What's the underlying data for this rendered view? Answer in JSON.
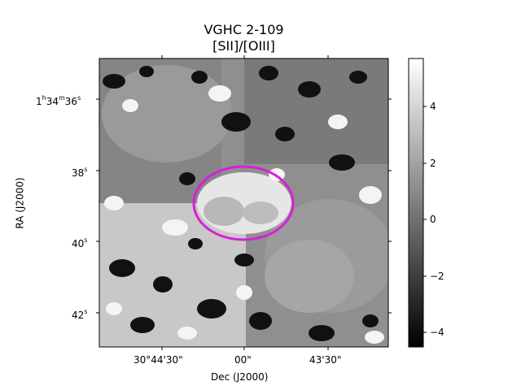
{
  "figure": {
    "title_line1": "VGHC 2-109",
    "title_line2": "[SII]/[OIII]",
    "xlabel": "Dec (J2000)",
    "ylabel": "RA (J2000)"
  },
  "x_ticks": [
    "30°44'30\"",
    "00\"",
    "43'30\""
  ],
  "y_ticks": [
    {
      "base": "1",
      "u1": "h",
      "mid": "34",
      "u2": "m",
      "sec": "36",
      "u3": "s"
    },
    {
      "sec": "38",
      "u3": "s"
    },
    {
      "sec": "40",
      "u3": "s"
    },
    {
      "sec": "42",
      "u3": "s"
    }
  ],
  "colorbar": {
    "ticks": [
      "4",
      "2",
      "0",
      "−2",
      "−4"
    ],
    "tick_values": [
      4,
      2,
      0,
      -2,
      -4
    ],
    "range": [
      -4.5,
      5.7
    ],
    "colormap": "gray"
  },
  "region": {
    "shape": "ellipse",
    "color": "#d81fd8"
  }
}
